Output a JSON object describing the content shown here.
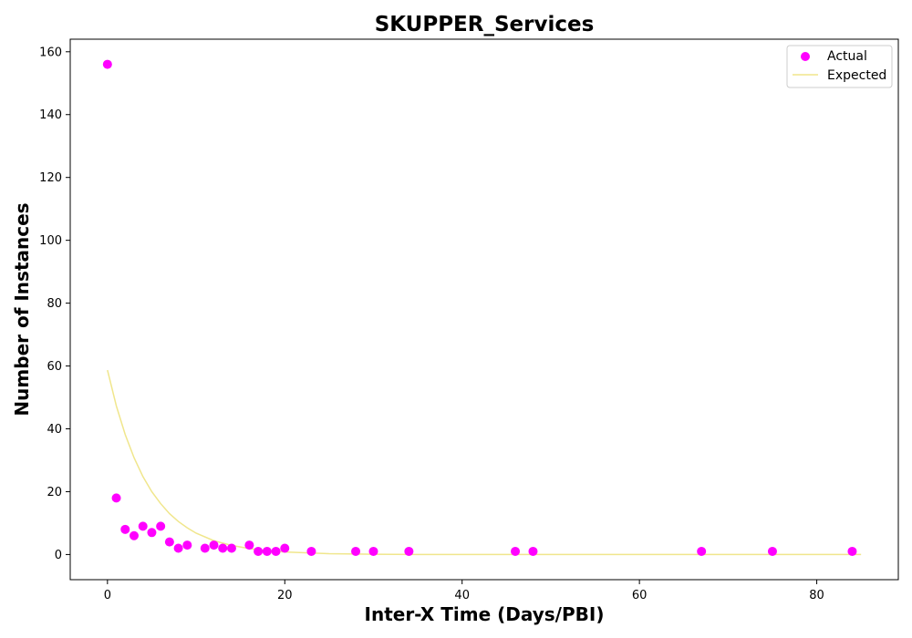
{
  "chart_data": {
    "type": "scatter",
    "title": "SKUPPER_Services",
    "xlabel": "Inter-X Time (Days/PBI)",
    "ylabel": "Number of Instances",
    "xlim": [
      -4.2,
      89.2
    ],
    "ylim": [
      -8,
      164
    ],
    "xticks": [
      0,
      20,
      40,
      60,
      80
    ],
    "yticks": [
      0,
      20,
      40,
      60,
      80,
      100,
      120,
      140,
      160
    ],
    "grid": false,
    "legend_position": "top-right",
    "series": [
      {
        "name": "Actual",
        "kind": "scatter",
        "color": "#ff00ff",
        "x": [
          0,
          1,
          2,
          3,
          4,
          5,
          6,
          7,
          8,
          9,
          11,
          12,
          13,
          14,
          16,
          17,
          18,
          19,
          20,
          23,
          28,
          30,
          34,
          46,
          48,
          67,
          75,
          84
        ],
        "y": [
          156,
          18,
          8,
          6,
          9,
          7,
          9,
          4,
          2,
          3,
          2,
          3,
          2,
          2,
          3,
          1,
          1,
          1,
          2,
          1,
          1,
          1,
          1,
          1,
          1,
          1,
          1,
          1
        ]
      },
      {
        "name": "Expected",
        "kind": "line",
        "color": "#f0e68c",
        "x": [
          0,
          1,
          2,
          3,
          4,
          5,
          6,
          7,
          8,
          9,
          10,
          12,
          14,
          16,
          18,
          20,
          25,
          30,
          35,
          40,
          50,
          60,
          70,
          80,
          85
        ],
        "y": [
          58.7,
          47.3,
          38.2,
          30.8,
          24.8,
          20.0,
          16.2,
          13.0,
          10.5,
          8.5,
          6.8,
          4.4,
          2.9,
          1.9,
          1.2,
          0.8,
          0.27,
          0.09,
          0.03,
          0.01,
          0,
          0,
          0,
          0,
          0
        ]
      }
    ]
  }
}
